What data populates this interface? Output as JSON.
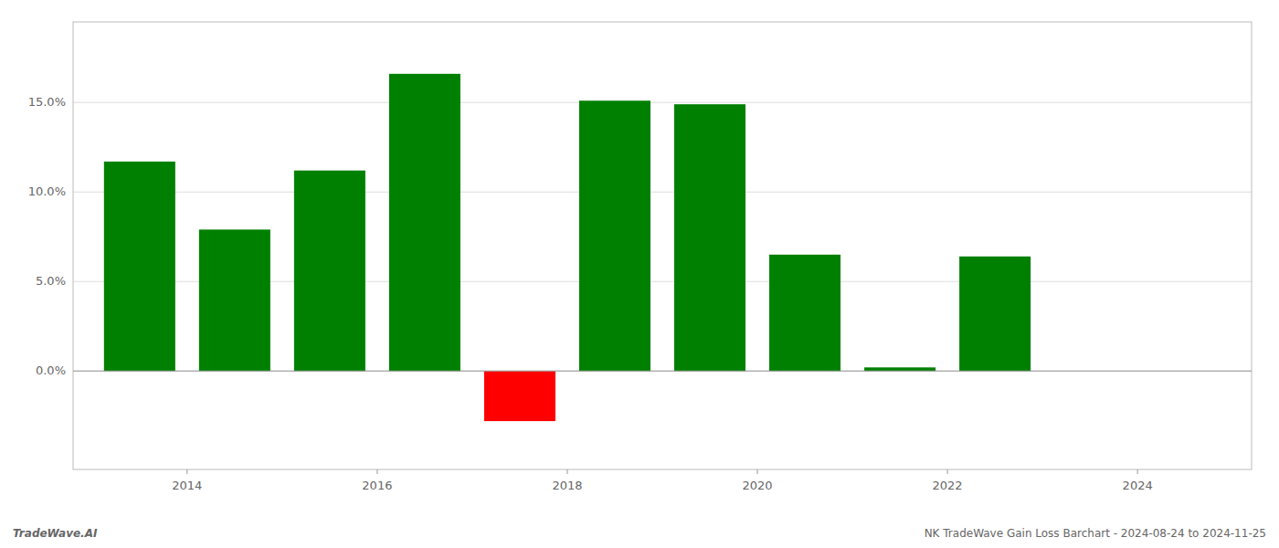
{
  "chart_data": {
    "type": "bar",
    "x": [
      2013.5,
      2014.5,
      2015.5,
      2016.5,
      2017.5,
      2018.5,
      2019.5,
      2020.5,
      2021.5,
      2022.5,
      2023.5
    ],
    "values": [
      0.117,
      0.079,
      0.112,
      0.166,
      -0.028,
      0.151,
      0.149,
      0.065,
      0.002,
      0.064,
      0.0
    ],
    "colors": [
      "#008000",
      "#008000",
      "#008000",
      "#008000",
      "#ff0000",
      "#008000",
      "#008000",
      "#008000",
      "#008000",
      "#008000",
      "#008000"
    ],
    "xlim": [
      2012.8,
      2025.2
    ],
    "xticks": [
      2014,
      2016,
      2018,
      2020,
      2022,
      2024
    ],
    "ylim": [
      -0.055,
      0.195
    ],
    "yticks": [
      {
        "value": 0.0,
        "label": "0.0%"
      },
      {
        "value": 0.05,
        "label": "5.0%"
      },
      {
        "value": 0.1,
        "label": "10.0%"
      },
      {
        "value": 0.15,
        "label": "15.0%"
      }
    ],
    "grid": true,
    "annotations": [
      "TradeWave.AI",
      "NK TradeWave Gain Loss Barchart - 2024-08-24 to 2024-11-25"
    ]
  }
}
